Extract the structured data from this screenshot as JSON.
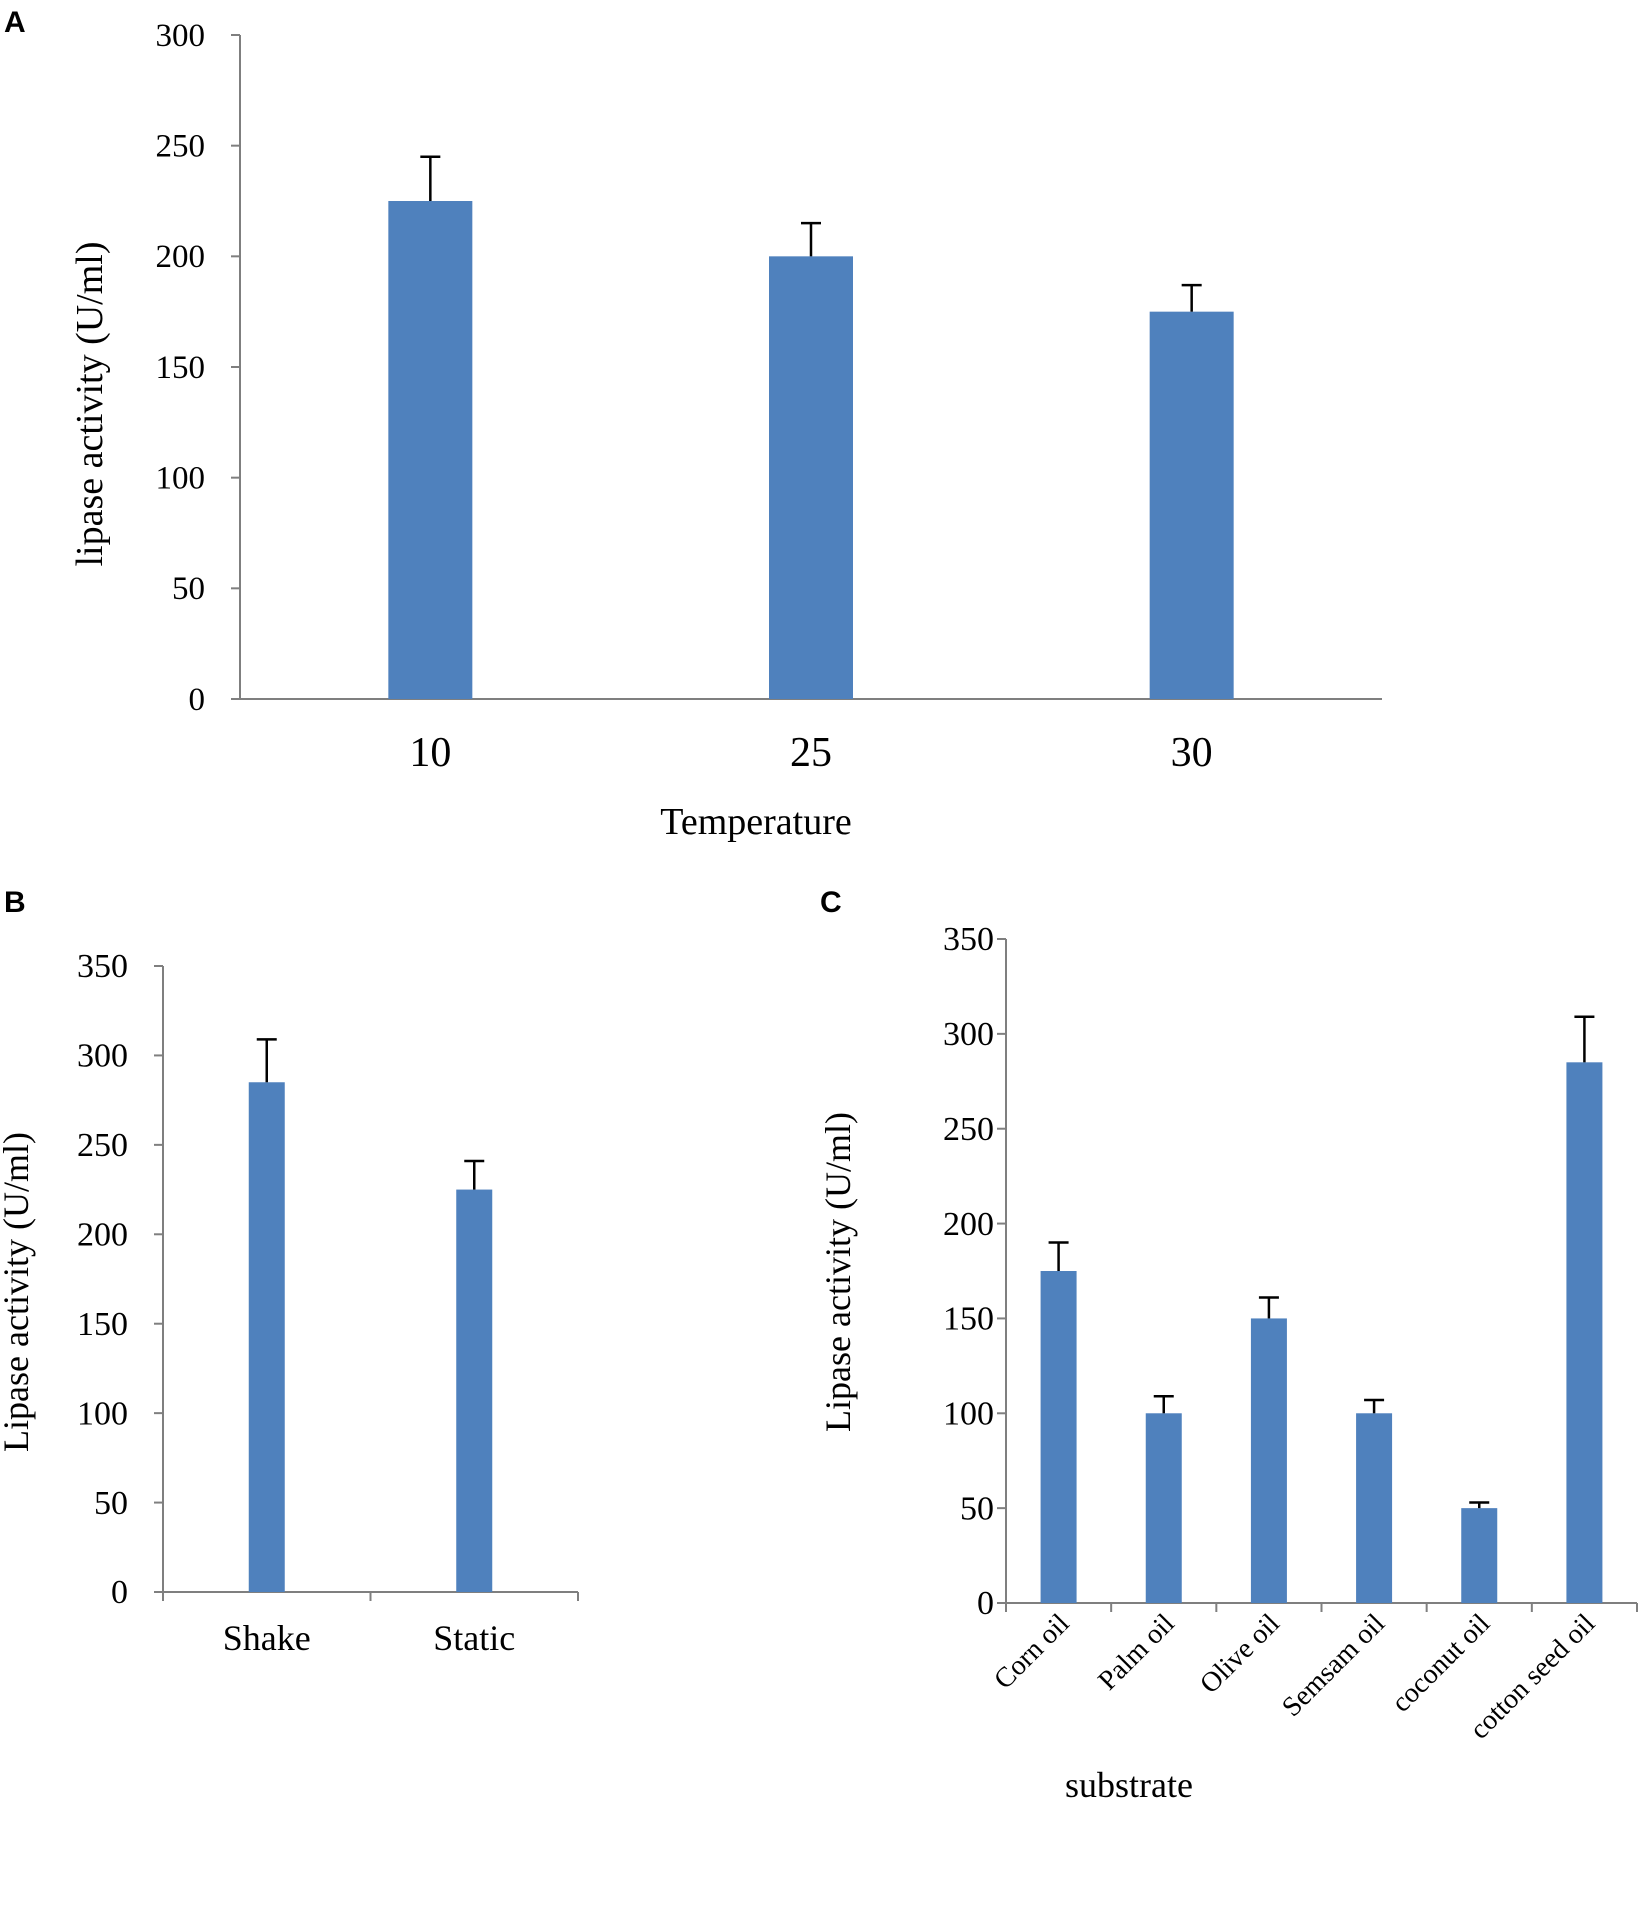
{
  "colors": {
    "bar": "#4f81bd",
    "axis": "#7f7f7f",
    "error": "#000000"
  },
  "chart_data": [
    {
      "panel": "A",
      "type": "bar",
      "categories": [
        "10",
        "25",
        "30"
      ],
      "values": [
        225,
        200,
        175
      ],
      "error_plus": [
        20,
        15,
        12
      ],
      "title": "",
      "xlabel": "Temperature",
      "ylabel": "lipase activity (U/ml)",
      "ylim": [
        0,
        300
      ],
      "yticks": [
        0,
        50,
        100,
        150,
        200,
        250,
        300
      ],
      "grid": false,
      "legend": "none"
    },
    {
      "panel": "B",
      "type": "bar",
      "categories": [
        "Shake",
        "Static"
      ],
      "values": [
        285,
        225
      ],
      "error_plus": [
        24,
        16
      ],
      "title": "",
      "xlabel": "",
      "ylabel": "Lipase activity (U/ml)",
      "ylim": [
        0,
        350
      ],
      "yticks": [
        0,
        50,
        100,
        150,
        200,
        250,
        300,
        350
      ],
      "grid": false,
      "legend": "none"
    },
    {
      "panel": "C",
      "type": "bar",
      "categories": [
        "Corn oil",
        "Palm oil",
        "Olive oil",
        "Semsam oil",
        "coconut oil",
        "cotton seed oil"
      ],
      "values": [
        175,
        100,
        150,
        100,
        50,
        285
      ],
      "error_plus": [
        15,
        9,
        11,
        7,
        3,
        24
      ],
      "title": "",
      "xlabel": "substrate",
      "ylabel": "Lipase activity (U/ml)",
      "ylim": [
        0,
        350
      ],
      "yticks": [
        0,
        50,
        100,
        150,
        200,
        250,
        300,
        350
      ],
      "grid": false,
      "legend": "none"
    }
  ]
}
